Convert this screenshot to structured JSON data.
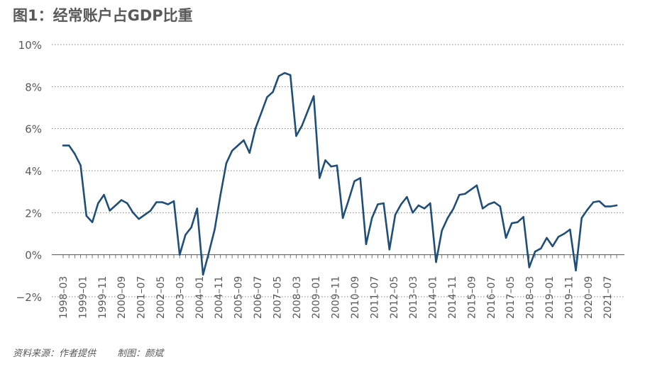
{
  "header": {
    "title": "图1：经常账户占GDP比重"
  },
  "footer": {
    "source": "资料来源：作者提供",
    "credit": "制图：颜斌"
  },
  "chart_data": {
    "type": "line",
    "title": "图1：经常账户占GDP比重",
    "xlabel": "",
    "ylabel": "",
    "ylim": [
      -2,
      10
    ],
    "yticks": [
      "10%",
      "8%",
      "6%",
      "4%",
      "2%",
      "0%",
      "−2%"
    ],
    "ytick_values": [
      10,
      8,
      6,
      4,
      2,
      0,
      -2
    ],
    "grid": "horizontal dotted",
    "xtick_labels": [
      "1998–03",
      "1999–01",
      "1999–11",
      "2000–09",
      "2001–07",
      "2002–05",
      "2003–03",
      "2004–01",
      "2004–11",
      "2005–09",
      "2006–07",
      "2007–05",
      "2008–03",
      "2009–01",
      "2009–11",
      "2010–09",
      "2011–07",
      "2012–05",
      "2013–03",
      "2014–01",
      "2014–11",
      "2015–09",
      "2016–07",
      "2017–05",
      "2018–03",
      "2019–01",
      "2019–11",
      "2020–09",
      "2021–07"
    ],
    "line_color": "#1f4e79",
    "series": [
      {
        "values": [
          5.2,
          5.2,
          4.8,
          4.25,
          1.85,
          1.55,
          2.45,
          2.85,
          2.1,
          2.35,
          2.6,
          2.45,
          2.0,
          1.7,
          1.9,
          2.1,
          2.5,
          2.5,
          2.4,
          2.55,
          0.0,
          0.95,
          1.3,
          2.2,
          -0.95,
          0.1,
          1.2,
          2.85,
          4.35,
          4.95,
          5.2,
          5.45,
          4.85,
          6.0,
          6.75,
          7.5,
          7.75,
          8.5,
          8.65,
          8.55,
          5.65,
          6.15,
          6.85,
          7.55,
          3.65,
          4.5,
          4.2,
          4.25,
          1.75,
          2.6,
          3.5,
          3.65,
          0.5,
          1.75,
          2.4,
          2.45,
          0.25,
          1.9,
          2.4,
          2.75,
          2.0,
          2.35,
          2.2,
          2.45,
          -0.35,
          1.15,
          1.75,
          2.2,
          2.85,
          2.9,
          3.1,
          3.3,
          2.2,
          2.4,
          2.5,
          2.3,
          0.8,
          1.5,
          1.55,
          1.8,
          -0.6,
          0.15,
          0.3,
          0.8,
          0.4,
          0.85,
          1.0,
          1.2,
          -0.75,
          1.75,
          2.15,
          2.5,
          2.55,
          2.3,
          2.3,
          2.35
        ]
      }
    ]
  }
}
